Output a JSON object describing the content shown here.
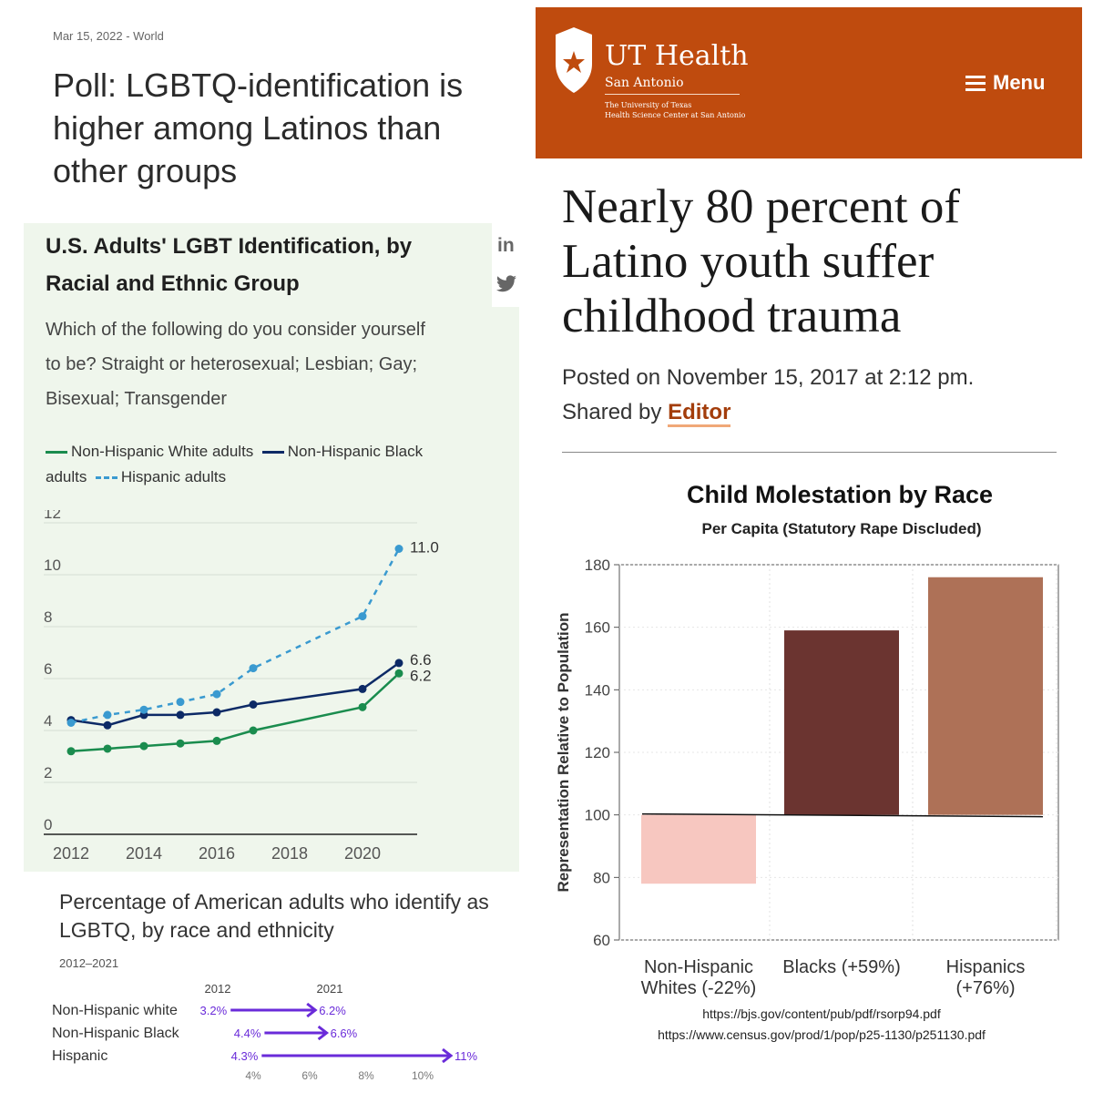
{
  "left_article": {
    "meta": "Mar 15, 2022 - World",
    "headline": "Poll: LGBTQ-identification is higher among Latinos than other groups",
    "card_title": "U.S. Adults' LGBT Identification, by Racial and Ethnic Group",
    "question": "Which of the following do you consider yourself to be? Straight or heterosexual; Lesbian; Gay; Bisexual; Transgender",
    "legend": {
      "white": "Non-Hispanic White adults",
      "black": "Non-Hispanic Black adults",
      "hispanic": "Hispanic adults"
    },
    "share_linkedin": "in",
    "sub_title": "Percentage of American adults who identify as LGBTQ, by race and ethnicity",
    "sub_range": "2012–2021"
  },
  "right_article": {
    "brand_title": "UT Health",
    "brand_sub": "San Antonio",
    "brand_inst_1": "The University of Texas",
    "brand_inst_2": "Health Science Center at San Antonio",
    "menu_label": "Menu",
    "headline": "Nearly 80 percent of Latino youth suffer childhood trauma",
    "posted": "Posted on November 15, 2017 at 2:12 pm.",
    "shared_by": "Shared by",
    "author": "Editor"
  },
  "colors": {
    "white_series": "#1a8c4e",
    "black_series": "#0d2a66",
    "hispanic_series": "#3a9ad0",
    "dumbbell": "#6a2bd9",
    "ut_orange": "#bf4b0e"
  },
  "chart_data": [
    {
      "type": "line",
      "title": "U.S. Adults' LGBT Identification, by Racial and Ethnic Group",
      "xlabel": "",
      "ylabel": "",
      "xlim": [
        2011.5,
        2021.5
      ],
      "ylim": [
        0,
        12
      ],
      "x_ticks": [
        2012,
        2014,
        2016,
        2018,
        2020
      ],
      "y_ticks": [
        0,
        2,
        4,
        6,
        8,
        10,
        12
      ],
      "grid": true,
      "series": [
        {
          "name": "Non-Hispanic White adults",
          "style": "solid",
          "color": "#1a8c4e",
          "x": [
            2012,
            2013,
            2014,
            2015,
            2016,
            2017,
            2020,
            2021
          ],
          "values": [
            3.2,
            3.3,
            3.4,
            3.5,
            3.6,
            4.0,
            4.9,
            6.2
          ],
          "end_label": "6.2"
        },
        {
          "name": "Non-Hispanic Black adults",
          "style": "solid",
          "color": "#0d2a66",
          "x": [
            2012,
            2013,
            2014,
            2015,
            2016,
            2017,
            2020,
            2021
          ],
          "values": [
            4.4,
            4.2,
            4.6,
            4.6,
            4.7,
            5.0,
            5.6,
            6.6
          ],
          "end_label": "6.6"
        },
        {
          "name": "Hispanic adults",
          "style": "dashed",
          "color": "#3a9ad0",
          "x": [
            2012,
            2013,
            2014,
            2015,
            2016,
            2017,
            2020,
            2021
          ],
          "values": [
            4.3,
            4.6,
            4.8,
            5.1,
            5.4,
            6.4,
            8.4,
            11.0
          ],
          "end_label": "11.0"
        }
      ]
    },
    {
      "type": "dumbbell",
      "title": "Percentage of American adults who identify as LGBTQ, by race and ethnicity",
      "col_2012": "2012",
      "col_2021": "2021",
      "xlim": [
        3,
        11.5
      ],
      "x_ticks": [
        4,
        6,
        8,
        10
      ],
      "x_tick_labels": [
        "4%",
        "6%",
        "8%",
        "10%"
      ],
      "rows": [
        {
          "label": "Non-Hispanic white",
          "start": 3.2,
          "end": 6.2,
          "start_label": "3.2%",
          "end_label": "6.2%"
        },
        {
          "label": "Non-Hispanic Black",
          "start": 4.4,
          "end": 6.6,
          "start_label": "4.4%",
          "end_label": "6.6%"
        },
        {
          "label": "Hispanic",
          "start": 4.3,
          "end": 11.0,
          "start_label": "4.3%",
          "end_label": "11%"
        }
      ]
    },
    {
      "type": "bar",
      "title": "Child Molestation by Race",
      "subtitle": "Per Capita (Statutory Rape Discluded)",
      "ylabel": "Representation Relative to Population",
      "ylim": [
        60,
        180
      ],
      "y_ticks": [
        60,
        80,
        100,
        120,
        140,
        160,
        180
      ],
      "baseline": 100,
      "categories": [
        "Non-Hispanic Whites (-22%)",
        "Blacks (+59%)",
        "Hispanics (+76%)"
      ],
      "category_lines": [
        [
          "Non-Hispanic",
          "Whites (-22%)"
        ],
        [
          "Blacks (+59%)"
        ],
        [
          "Hispanics",
          "(+76%)"
        ]
      ],
      "values": [
        78,
        159,
        176
      ],
      "bar_colors": [
        "#f7c7c0",
        "#6b3430",
        "#ae7157"
      ],
      "sources": [
        "https://bjs.gov/content/pub/pdf/rsorp94.pdf",
        "https://www.census.gov/prod/1/pop/p25-1130/p251130.pdf"
      ]
    }
  ]
}
